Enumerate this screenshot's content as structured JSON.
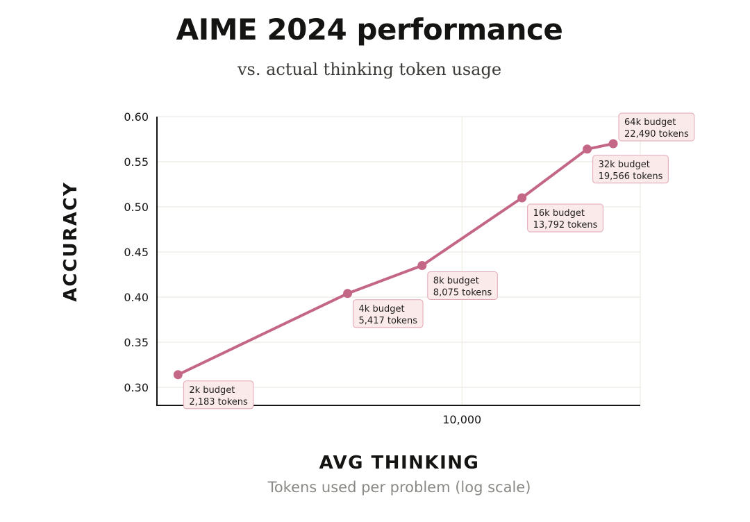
{
  "chart_data": {
    "type": "line",
    "title": "AIME 2024 performance",
    "subtitle": "vs. actual thinking token usage",
    "xlabel": "AVG THINKING",
    "xlabel_sub": "Tokens used per problem (log scale)",
    "ylabel": "ACCURACY",
    "x_scale": "log",
    "xlim": [
      1950,
      26000
    ],
    "ylim": [
      0.28,
      0.6
    ],
    "x_ticks": [
      {
        "value": 10000,
        "label": "10,000"
      }
    ],
    "y_ticks": [
      {
        "value": 0.3,
        "label": "0.30"
      },
      {
        "value": 0.35,
        "label": "0.35"
      },
      {
        "value": 0.4,
        "label": "0.40"
      },
      {
        "value": 0.45,
        "label": "0.45"
      },
      {
        "value": 0.5,
        "label": "0.50"
      },
      {
        "value": 0.55,
        "label": "0.55"
      },
      {
        "value": 0.6,
        "label": "0.60"
      }
    ],
    "grid": true,
    "line_color": "#c46685",
    "label_bg": "#fbeaea",
    "label_border": "#e3a6b4",
    "points": [
      {
        "x": 2183,
        "y": 0.314,
        "budget": "2k budget",
        "tokens": "2,183 tokens",
        "label_pos": "below"
      },
      {
        "x": 5417,
        "y": 0.404,
        "budget": "4k budget",
        "tokens": "5,417 tokens",
        "label_pos": "below"
      },
      {
        "x": 8075,
        "y": 0.435,
        "budget": "8k budget",
        "tokens": "8,075 tokens",
        "label_pos": "below"
      },
      {
        "x": 13792,
        "y": 0.51,
        "budget": "16k budget",
        "tokens": "13,792 tokens",
        "label_pos": "below"
      },
      {
        "x": 19566,
        "y": 0.564,
        "budget": "32k budget",
        "tokens": "19,566 tokens",
        "label_pos": "below"
      },
      {
        "x": 22490,
        "y": 0.57,
        "budget": "64k budget",
        "tokens": "22,490 tokens",
        "label_pos": "above-right"
      }
    ]
  }
}
